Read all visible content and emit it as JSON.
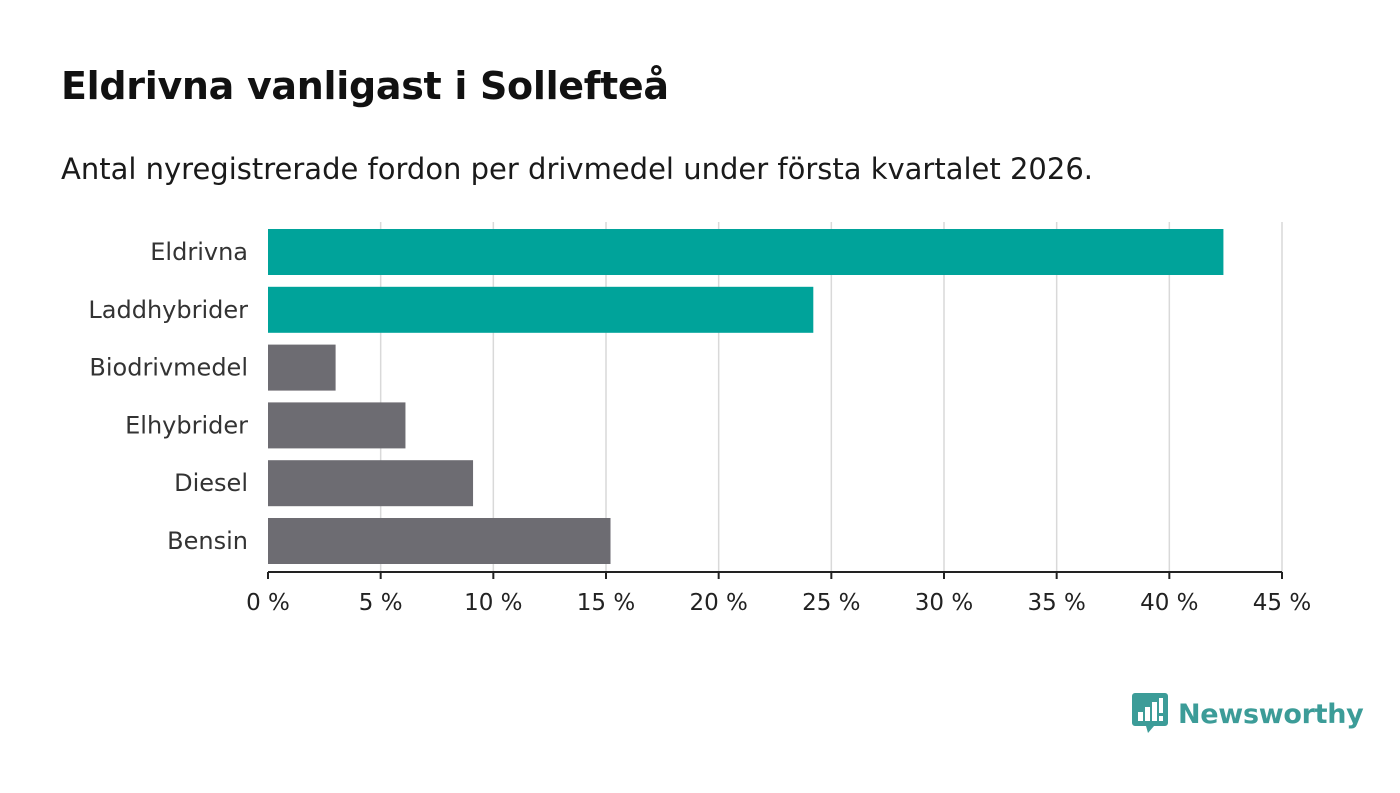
{
  "title": "Eldrivna vanligast i Sollefteå",
  "subtitle": "Antal nyregistrerade fordon per drivmedel under första kvartalet 2026.",
  "brand": {
    "name": "Newsworthy",
    "color": "#3c9c98",
    "icon": "bar-chart-speech-bubble-icon"
  },
  "colors": {
    "highlight": "#00a39a",
    "default": "#6d6c72",
    "grid": "#d9d9d9",
    "axis": "#222222"
  },
  "chart_data": {
    "type": "bar",
    "orientation": "horizontal",
    "title": "Eldrivna vanligast i Sollefteå",
    "subtitle": "Antal nyregistrerade fordon per drivmedel under första kvartalet 2026.",
    "xlabel": "",
    "ylabel": "",
    "categories": [
      "Eldrivna",
      "Laddhybrider",
      "Biodrivmedel",
      "Elhybrider",
      "Diesel",
      "Bensin"
    ],
    "values": [
      42.4,
      24.2,
      3.0,
      6.1,
      9.1,
      15.2
    ],
    "highlighted": [
      true,
      true,
      false,
      false,
      false,
      false
    ],
    "xlim": [
      0,
      45
    ],
    "ticks": [
      0,
      5,
      10,
      15,
      20,
      25,
      30,
      35,
      40,
      45
    ],
    "tick_labels": [
      "0 %",
      "5 %",
      "10 %",
      "15 %",
      "20 %",
      "25 %",
      "30 %",
      "35 %",
      "40 %",
      "45 %"
    ],
    "grid": true,
    "legend": "none"
  }
}
